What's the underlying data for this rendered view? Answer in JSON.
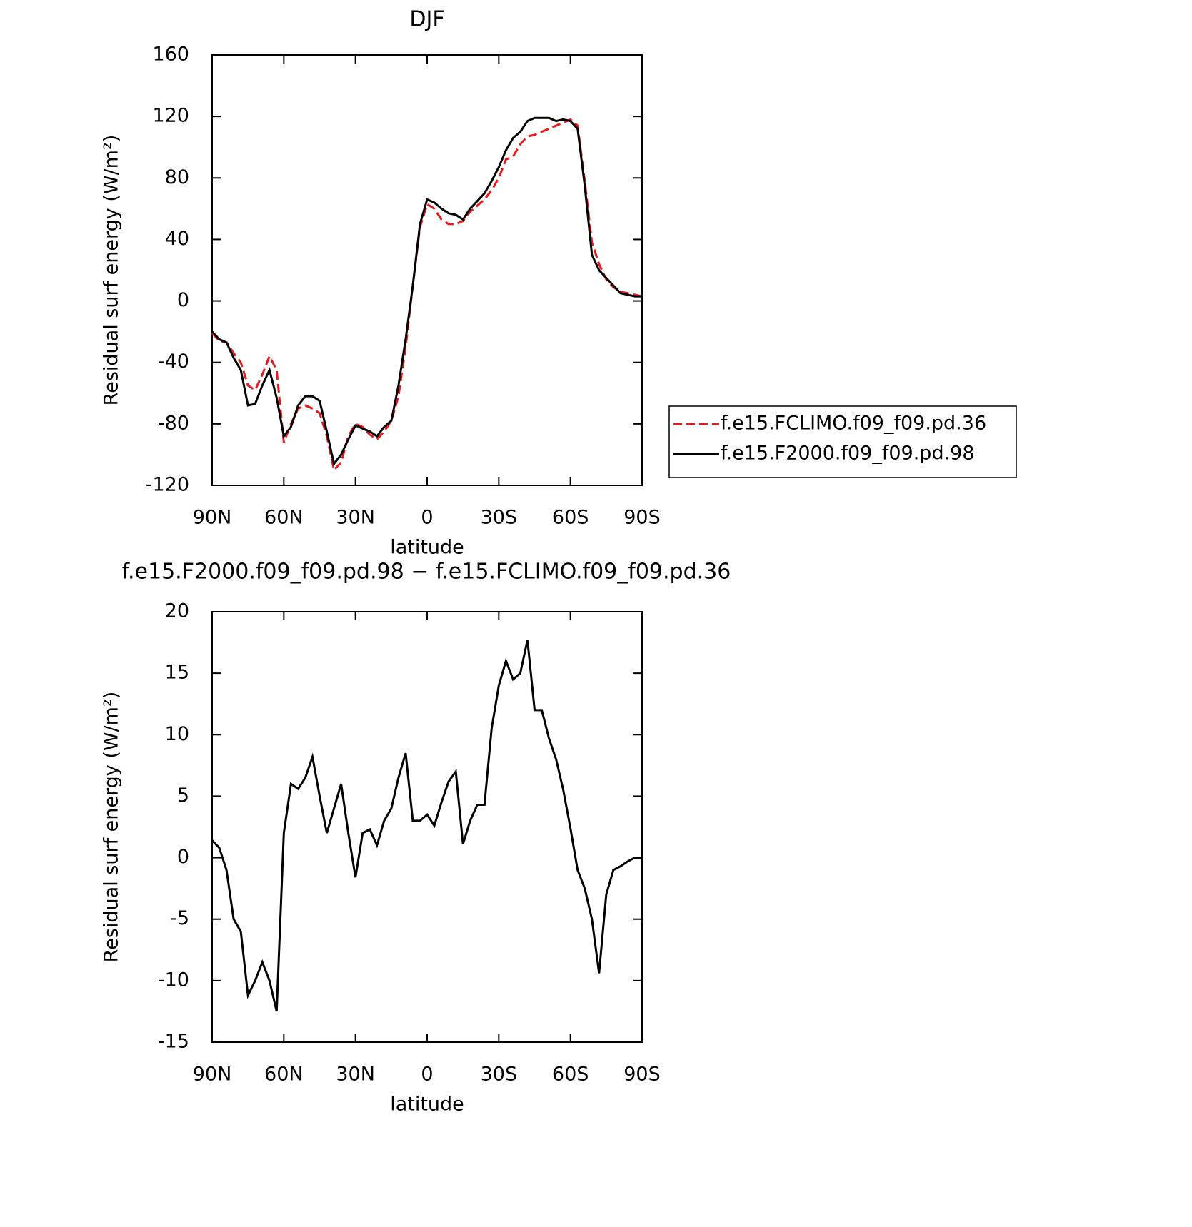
{
  "chart_data": [
    {
      "type": "line",
      "title": "DJF",
      "x_label": "latitude",
      "y_label": "Residual surf energy (W/m²)",
      "x": [
        90,
        87,
        84,
        81,
        78,
        75,
        72,
        69,
        66,
        63,
        60,
        57,
        54,
        51,
        48,
        45,
        42,
        39,
        36,
        33,
        30,
        27,
        24,
        21,
        18,
        15,
        12,
        9,
        6,
        3,
        0,
        -3,
        -6,
        -9,
        -12,
        -15,
        -18,
        -21,
        -24,
        -27,
        -30,
        -33,
        -36,
        -39,
        -42,
        -45,
        -48,
        -51,
        -54,
        -57,
        -60,
        -63,
        -66,
        -69,
        -72,
        -75,
        -78,
        -81,
        -84,
        -87,
        -90
      ],
      "series": [
        {
          "name": "f.e15.FCLIMO.f09_f09.pd.36",
          "color": "#e41a1c",
          "dash": true,
          "values": [
            -21,
            -26,
            -27,
            -34,
            -40,
            -55,
            -58,
            -48,
            -36,
            -45,
            -92,
            -80,
            -70,
            -68,
            -70,
            -73,
            -88,
            -110,
            -105,
            -88,
            -80,
            -82,
            -87,
            -90,
            -85,
            -78,
            -62,
            -30,
            10,
            48,
            63,
            60,
            53,
            50,
            50,
            52,
            58,
            62,
            66,
            72,
            80,
            92,
            94,
            102,
            107,
            108,
            110,
            112,
            114,
            116,
            118,
            114,
            78,
            38,
            24,
            14,
            9,
            6,
            5,
            4,
            3
          ]
        },
        {
          "name": "f.e15.F2000.f09_f09.pd.98",
          "color": "#000000",
          "dash": false,
          "values": [
            -20,
            -25,
            -27,
            -37,
            -45,
            -68,
            -67,
            -55,
            -45,
            -63,
            -88,
            -82,
            -68,
            -62,
            -62,
            -65,
            -85,
            -106,
            -100,
            -90,
            -81,
            -83,
            -85,
            -88,
            -82,
            -78,
            -55,
            -25,
            10,
            50,
            66,
            64,
            60,
            57,
            56,
            53,
            60,
            65,
            70,
            78,
            87,
            98,
            106,
            110,
            117,
            119,
            119,
            119,
            117,
            118,
            117,
            112,
            75,
            30,
            20,
            15,
            10,
            5,
            4,
            3,
            3
          ]
        }
      ],
      "xlim": [
        90,
        -90
      ],
      "xticks": [
        {
          "value": 90,
          "label": "90N"
        },
        {
          "value": 60,
          "label": "60N"
        },
        {
          "value": 30,
          "label": "30N"
        },
        0,
        {
          "value": -30,
          "label": "30S"
        },
        {
          "value": -60,
          "label": "60S"
        },
        {
          "value": -90,
          "label": "90S"
        }
      ],
      "ylim": [
        -120,
        160
      ],
      "yticks": [
        -120,
        -80,
        -40,
        0,
        40,
        80,
        120,
        160
      ],
      "legend": "right"
    },
    {
      "type": "line",
      "title": "f.e15.F2000.f09_f09.pd.98 − f.e15.FCLIMO.f09_f09.pd.36",
      "x_label": "latitude",
      "y_label": "Residual surf energy (W/m²)",
      "x": [
        90,
        87,
        84,
        81,
        78,
        75,
        72,
        69,
        66,
        63,
        60,
        57,
        54,
        51,
        48,
        45,
        42,
        39,
        36,
        33,
        30,
        27,
        24,
        21,
        18,
        15,
        12,
        9,
        6,
        3,
        0,
        -3,
        -6,
        -9,
        -12,
        -15,
        -18,
        -21,
        -24,
        -27,
        -30,
        -33,
        -36,
        -39,
        -42,
        -45,
        -48,
        -51,
        -54,
        -57,
        -60,
        -63,
        -66,
        -69,
        -72,
        -75,
        -78,
        -81,
        -84,
        -87,
        -90
      ],
      "color": "#000000",
      "values": [
        1.4,
        0.8,
        -1.0,
        -5,
        -6,
        -11.2,
        -10,
        -8.5,
        -10,
        -12.5,
        2,
        6,
        5.6,
        6.5,
        8.2,
        5,
        2,
        4,
        6,
        2,
        -1.6,
        2,
        2.3,
        1,
        3,
        4,
        6.5,
        8.5,
        3,
        3,
        3.5,
        2.6,
        4.5,
        6.2,
        7,
        1.1,
        3,
        4.3,
        4.3,
        10.5,
        14,
        16,
        14.5,
        15,
        17.7,
        12,
        12,
        9.7,
        8,
        5.5,
        2.4,
        -1,
        -2.5,
        -5,
        -9.4,
        -3,
        -1,
        -0.7,
        -0.3,
        0,
        0
      ],
      "xlim": [
        90,
        -90
      ],
      "xticks": [
        {
          "value": 90,
          "label": "90N"
        },
        {
          "value": 60,
          "label": "60N"
        },
        {
          "value": 30,
          "label": "30N"
        },
        0,
        {
          "value": -30,
          "label": "30S"
        },
        {
          "value": -60,
          "label": "60S"
        },
        {
          "value": -90,
          "label": "90S"
        }
      ],
      "ylim": [
        -15,
        20
      ],
      "yticks": [
        -15,
        -10,
        -5,
        0,
        5,
        10,
        15,
        20
      ]
    }
  ]
}
